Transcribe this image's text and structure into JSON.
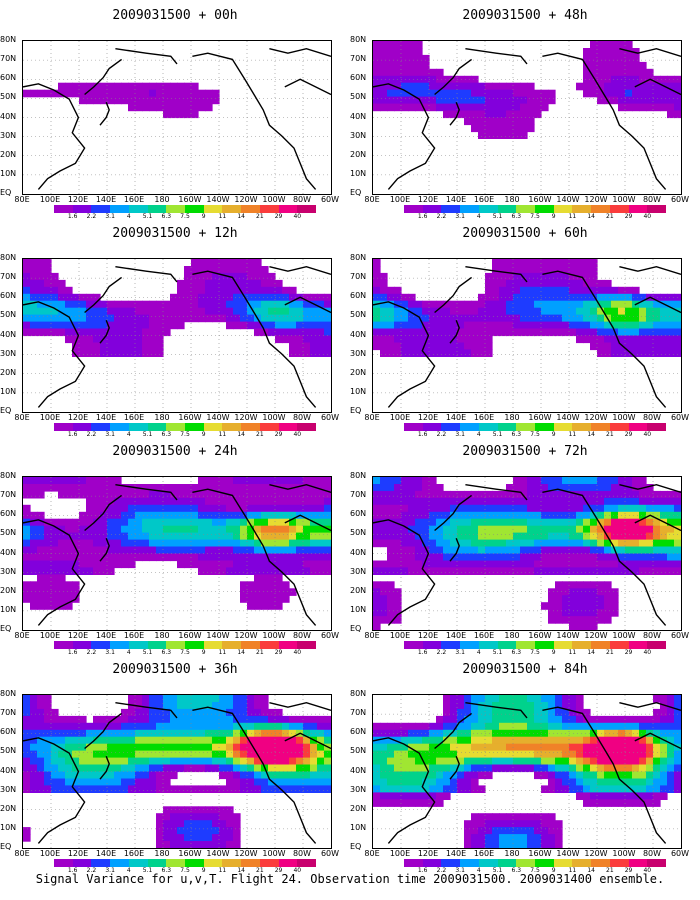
{
  "panels": [
    {
      "title": "2009031500 + 00h"
    },
    {
      "title": "2009031500 + 48h"
    },
    {
      "title": "2009031500 + 12h"
    },
    {
      "title": "2009031500 + 60h"
    },
    {
      "title": "2009031500 + 24h"
    },
    {
      "title": "2009031500 + 72h"
    },
    {
      "title": "2009031500 + 36h"
    },
    {
      "title": "2009031500 + 84h"
    }
  ],
  "axes": {
    "lat_labels": [
      "80N",
      "70N",
      "60N",
      "50N",
      "40N",
      "30N",
      "20N",
      "10N",
      "EQ"
    ],
    "lon_labels": [
      "80E",
      "100E",
      "120E",
      "140E",
      "160E",
      "180",
      "160W",
      "140W",
      "120W",
      "100W",
      "80W",
      "60W"
    ]
  },
  "colorbar": {
    "labels": [
      "1.6",
      "2.2",
      "3.1",
      "4",
      "5.1",
      "6.3",
      "7.5",
      "9",
      "11",
      "14",
      "21",
      "29",
      "40"
    ],
    "colors": [
      "#a000c8",
      "#8200dc",
      "#1e3cff",
      "#00a0ff",
      "#00c8c8",
      "#00d28c",
      "#a0e632",
      "#00dc00",
      "#e6dc32",
      "#e6af2d",
      "#f08228",
      "#fa3c3c",
      "#f00082"
    ]
  },
  "caption": "Signal Variance for u,v,T. Flight 24. Observation time 2009031500. 2009031400 ensemble."
}
